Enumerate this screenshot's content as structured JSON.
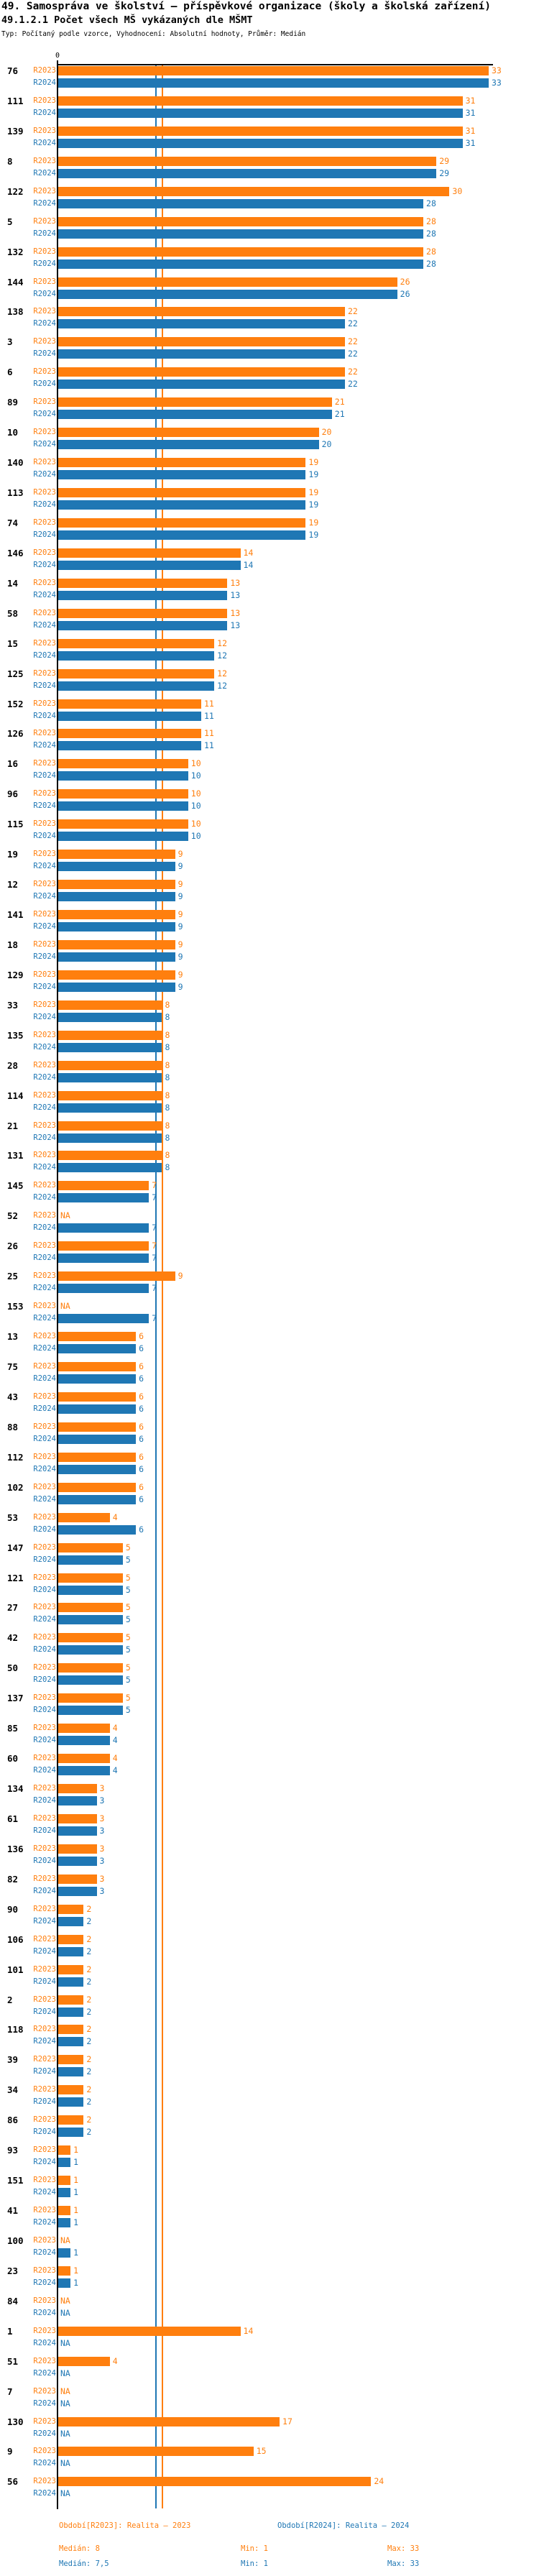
{
  "header": {
    "title": "49. Samospráva ve školství – příspěvkové organizace (školy a školská zařízení)",
    "subtitle": "49.1.2.1 Počet všech MŠ vykázaných dle MŠMT",
    "meta": "Typ: Počítaný podle vzorce, Vyhodnocení: Absolutní hodnoty, Průměr: Medián"
  },
  "axis": {
    "zero_label": "0"
  },
  "na_label": "NA",
  "colors": {
    "r2023": "#ff7f0e",
    "r2024": "#1f77b4",
    "axis": "#000000"
  },
  "chart_data": {
    "type": "bar",
    "orientation": "horizontal",
    "title": "49.1.2.1 Počet všech MŠ vykázaných dle MŠMT",
    "xlabel": "",
    "ylabel": "",
    "xlim": [
      0,
      33.3
    ],
    "grid": false,
    "legend_position": "bottom",
    "categories": [
      "76",
      "111",
      "139",
      "8",
      "122",
      "5",
      "132",
      "144",
      "138",
      "3",
      "6",
      "89",
      "10",
      "140",
      "113",
      "74",
      "146",
      "14",
      "58",
      "15",
      "125",
      "152",
      "126",
      "16",
      "96",
      "115",
      "19",
      "12",
      "141",
      "18",
      "129",
      "33",
      "135",
      "28",
      "114",
      "21",
      "131",
      "145",
      "52",
      "26",
      "25",
      "153",
      "13",
      "75",
      "43",
      "88",
      "112",
      "102",
      "53",
      "147",
      "121",
      "27",
      "42",
      "50",
      "137",
      "85",
      "60",
      "134",
      "61",
      "136",
      "82",
      "90",
      "106",
      "101",
      "2",
      "118",
      "39",
      "34",
      "86",
      "93",
      "151",
      "41",
      "100",
      "23",
      "84",
      "1",
      "51",
      "7",
      "130",
      "9",
      "56"
    ],
    "series": [
      {
        "name": "R2023",
        "values": [
          33,
          31,
          31,
          29,
          30,
          28,
          28,
          26,
          22,
          22,
          22,
          21,
          20,
          19,
          19,
          19,
          14,
          13,
          13,
          12,
          12,
          11,
          11,
          10,
          10,
          10,
          9,
          9,
          9,
          9,
          9,
          8,
          8,
          8,
          8,
          8,
          8,
          7,
          null,
          7,
          9,
          null,
          6,
          6,
          6,
          6,
          6,
          6,
          4,
          5,
          5,
          5,
          5,
          5,
          5,
          4,
          4,
          3,
          3,
          3,
          3,
          2,
          2,
          2,
          2,
          2,
          2,
          2,
          2,
          1,
          1,
          1,
          null,
          1,
          null,
          14,
          4,
          null,
          17,
          15,
          24
        ]
      },
      {
        "name": "R2024",
        "values": [
          33,
          31,
          31,
          29,
          28,
          28,
          28,
          26,
          22,
          22,
          22,
          21,
          20,
          19,
          19,
          19,
          14,
          13,
          13,
          12,
          12,
          11,
          11,
          10,
          10,
          10,
          9,
          9,
          9,
          9,
          9,
          8,
          8,
          8,
          8,
          8,
          8,
          7,
          7,
          7,
          7,
          7,
          6,
          6,
          6,
          6,
          6,
          6,
          6,
          5,
          5,
          5,
          5,
          5,
          5,
          4,
          4,
          3,
          3,
          3,
          3,
          2,
          2,
          2,
          2,
          2,
          2,
          2,
          2,
          1,
          1,
          1,
          1,
          1,
          null,
          null,
          null,
          null,
          null,
          null,
          null
        ]
      }
    ],
    "medians": {
      "R2023": 8,
      "R2024": 7.5
    }
  },
  "legend": {
    "r2023": "Období[R2023]: Realita – 2023",
    "r2024": "Období[R2024]: Realita – 2024"
  },
  "stats": {
    "r2023": {
      "median": "Medián: 8",
      "min": "Min: 1",
      "max": "Max: 33"
    },
    "r2024": {
      "median": "Medián: 7,5",
      "min": "Min: 1",
      "max": "Max: 33"
    }
  }
}
